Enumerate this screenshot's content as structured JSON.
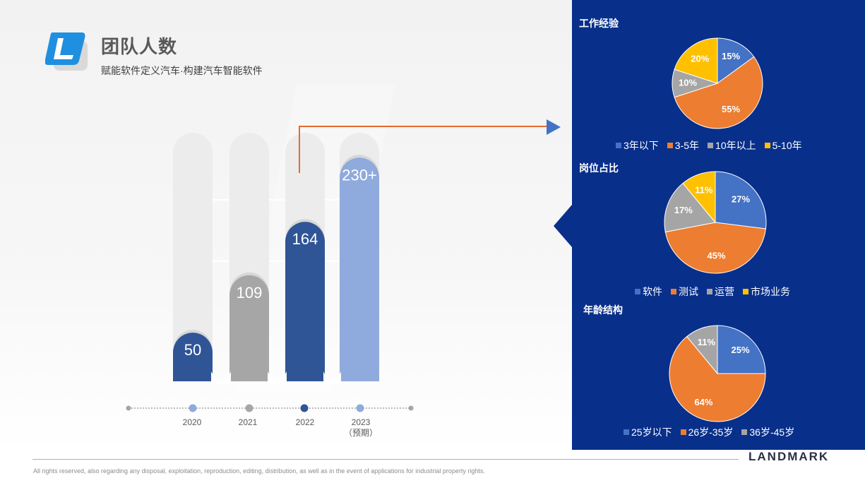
{
  "header": {
    "title": "团队人数",
    "subtitle": "赋能软件定义汽车·构建汽车智能软件"
  },
  "footer": {
    "text": "All rights reserved, also regarding any disposal, exploitation, reproduction, editing, distribution, as well as in the event of applications for industrial property rights.",
    "brand": "LANDMARK"
  },
  "colors": {
    "panel": "#082f8a",
    "blue": "#4472c4",
    "orange": "#ed7d31",
    "gray": "#a5a5a5",
    "yellow": "#ffc000",
    "bar_dark_blue": "#2f5597",
    "bar_gray": "#a6a6a6",
    "bar_light_blue": "#8faadc",
    "arrow": "#e46c2a"
  },
  "chart_data": [
    {
      "type": "bar",
      "categories": [
        "2020",
        "2021",
        "2022",
        "2023"
      ],
      "category_notes": [
        "",
        "",
        "",
        "（预期）"
      ],
      "values": [
        50,
        109,
        164,
        230
      ],
      "value_labels": [
        "50",
        "109",
        "164",
        "230+"
      ],
      "bar_colors": [
        "#2f5597",
        "#a6a6a6",
        "#2f5597",
        "#8faadc"
      ],
      "timeline_dot_colors": [
        "#8faadc",
        "#a6a6a6",
        "#2f5597",
        "#8faadc"
      ],
      "ylim": [
        0,
        260
      ]
    },
    {
      "type": "pie",
      "title": "工作经验",
      "slices": [
        {
          "label": "3年以下",
          "value": 15,
          "text": "15%",
          "color": "#4472c4"
        },
        {
          "label": "3-5年",
          "value": 55,
          "text": "55%",
          "color": "#ed7d31"
        },
        {
          "label": "10年以上",
          "value": 10,
          "text": "10%",
          "color": "#a5a5a5"
        },
        {
          "label": "5-10年",
          "value": 20,
          "text": "20%",
          "color": "#ffc000"
        }
      ]
    },
    {
      "type": "pie",
      "title": "岗位占比",
      "slices": [
        {
          "label": "软件",
          "value": 27,
          "text": "27%",
          "color": "#4472c4"
        },
        {
          "label": "测试",
          "value": 45,
          "text": "45%",
          "color": "#ed7d31"
        },
        {
          "label": "运营",
          "value": 17,
          "text": "17%",
          "color": "#a5a5a5"
        },
        {
          "label": "市场业务",
          "value": 11,
          "text": "11%",
          "color": "#ffc000"
        }
      ]
    },
    {
      "type": "pie",
      "title": "年龄结构",
      "slices": [
        {
          "label": "25岁以下",
          "value": 25,
          "text": "25%",
          "color": "#4472c4"
        },
        {
          "label": "26岁-35岁",
          "value": 64,
          "text": "64%",
          "color": "#ed7d31"
        },
        {
          "label": "36岁-45岁",
          "value": 11,
          "text": "11%",
          "color": "#a5a5a5"
        }
      ]
    }
  ]
}
